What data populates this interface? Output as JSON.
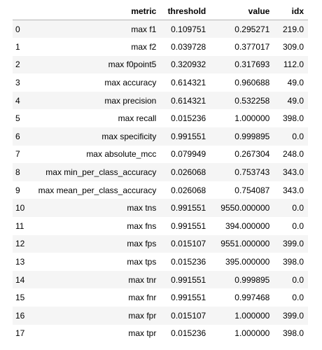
{
  "table": {
    "columns": [
      "",
      "metric",
      "threshold",
      "value",
      "idx"
    ],
    "rows": [
      {
        "index": "0",
        "metric": "max f1",
        "threshold": "0.109751",
        "value": "0.295271",
        "idx": "219.0"
      },
      {
        "index": "1",
        "metric": "max f2",
        "threshold": "0.039728",
        "value": "0.377017",
        "idx": "309.0"
      },
      {
        "index": "2",
        "metric": "max f0point5",
        "threshold": "0.320932",
        "value": "0.317693",
        "idx": "112.0"
      },
      {
        "index": "3",
        "metric": "max accuracy",
        "threshold": "0.614321",
        "value": "0.960688",
        "idx": "49.0"
      },
      {
        "index": "4",
        "metric": "max precision",
        "threshold": "0.614321",
        "value": "0.532258",
        "idx": "49.0"
      },
      {
        "index": "5",
        "metric": "max recall",
        "threshold": "0.015236",
        "value": "1.000000",
        "idx": "398.0"
      },
      {
        "index": "6",
        "metric": "max specificity",
        "threshold": "0.991551",
        "value": "0.999895",
        "idx": "0.0"
      },
      {
        "index": "7",
        "metric": "max absolute_mcc",
        "threshold": "0.079949",
        "value": "0.267304",
        "idx": "248.0"
      },
      {
        "index": "8",
        "metric": "max min_per_class_accuracy",
        "threshold": "0.026068",
        "value": "0.753743",
        "idx": "343.0"
      },
      {
        "index": "9",
        "metric": "max mean_per_class_accuracy",
        "threshold": "0.026068",
        "value": "0.754087",
        "idx": "343.0"
      },
      {
        "index": "10",
        "metric": "max tns",
        "threshold": "0.991551",
        "value": "9550.000000",
        "idx": "0.0"
      },
      {
        "index": "11",
        "metric": "max fns",
        "threshold": "0.991551",
        "value": "394.000000",
        "idx": "0.0"
      },
      {
        "index": "12",
        "metric": "max fps",
        "threshold": "0.015107",
        "value": "9551.000000",
        "idx": "399.0"
      },
      {
        "index": "13",
        "metric": "max tps",
        "threshold": "0.015236",
        "value": "395.000000",
        "idx": "398.0"
      },
      {
        "index": "14",
        "metric": "max tnr",
        "threshold": "0.991551",
        "value": "0.999895",
        "idx": "0.0"
      },
      {
        "index": "15",
        "metric": "max fnr",
        "threshold": "0.991551",
        "value": "0.997468",
        "idx": "0.0"
      },
      {
        "index": "16",
        "metric": "max fpr",
        "threshold": "0.015107",
        "value": "1.000000",
        "idx": "399.0"
      },
      {
        "index": "17",
        "metric": "max tpr",
        "threshold": "0.015236",
        "value": "1.000000",
        "idx": "398.0"
      }
    ]
  },
  "colors": {
    "stripe": "#f5f5f5",
    "header_rule": "#b5b5b5",
    "text": "#000000"
  }
}
